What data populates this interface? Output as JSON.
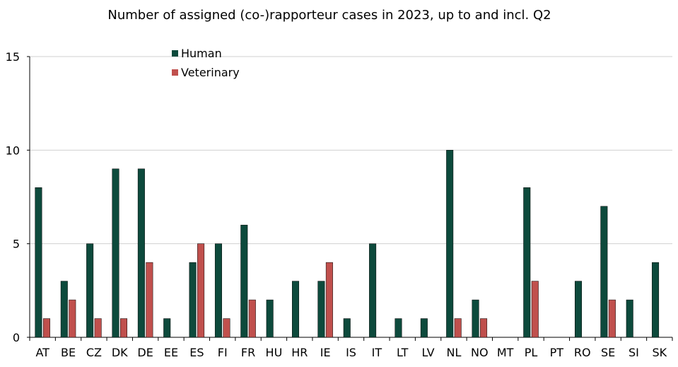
{
  "chart_data": {
    "type": "bar",
    "title": "Number of assigned (co-)rapporteur cases in 2023, up to and incl. Q2",
    "xlabel": "",
    "ylabel": "",
    "ylim": [
      0,
      15
    ],
    "yticks": [
      0,
      5,
      10,
      15
    ],
    "grid": true,
    "legend_position": "top-left",
    "categories": [
      "AT",
      "BE",
      "CZ",
      "DK",
      "DE",
      "EE",
      "ES",
      "FI",
      "FR",
      "HU",
      "HR",
      "IE",
      "IS",
      "IT",
      "LT",
      "LV",
      "NL",
      "NO",
      "MT",
      "PL",
      "PT",
      "RO",
      "SE",
      "SI",
      "SK"
    ],
    "series": [
      {
        "name": "Human",
        "color": "#0d4a3c",
        "values": [
          8,
          3,
          5,
          9,
          9,
          1,
          4,
          5,
          6,
          2,
          3,
          3,
          1,
          5,
          1,
          1,
          10,
          2,
          0,
          8,
          0,
          3,
          7,
          2,
          4
        ]
      },
      {
        "name": "Veterinary",
        "color": "#c0504d",
        "values": [
          1,
          2,
          1,
          1,
          4,
          0,
          5,
          1,
          2,
          0,
          0,
          4,
          0,
          0,
          0,
          0,
          1,
          1,
          0,
          3,
          0,
          0,
          2,
          0,
          0
        ]
      }
    ]
  }
}
